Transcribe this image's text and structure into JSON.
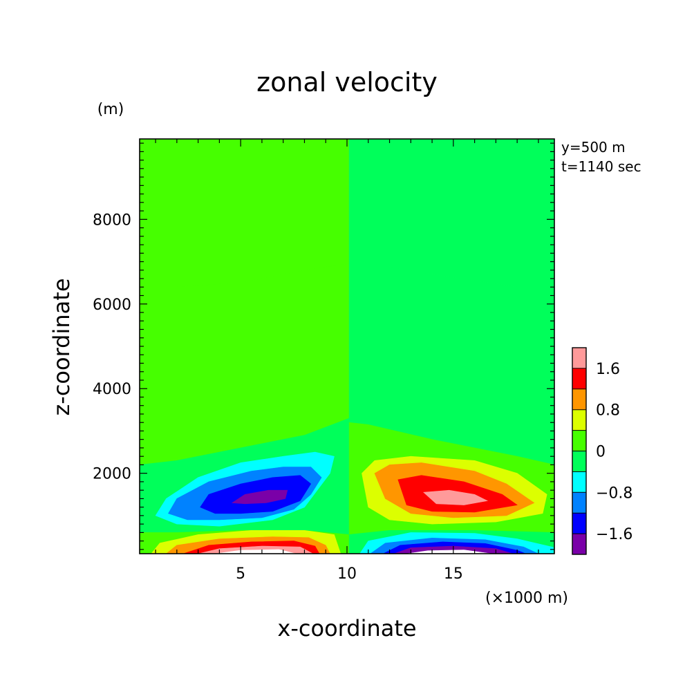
{
  "chart_data": {
    "type": "heatmap",
    "title": "zonal velocity",
    "xlabel": "x-coordinate",
    "ylabel": "z-coordinate",
    "x_unit": "(×1000 m)",
    "y_unit": "(m)",
    "annotations": [
      "y=500 m",
      "t=1140 sec"
    ],
    "xlim": [
      0.25,
      19.75
    ],
    "ylim": [
      100,
      9900
    ],
    "x_ticks": [
      5,
      10,
      15
    ],
    "y_ticks": [
      2000,
      4000,
      6000,
      8000
    ],
    "grid": false,
    "legend_placement": "right",
    "colorbar": {
      "levels": [
        {
          "min": -2.0,
          "max": -1.6,
          "color": "#7a00a8"
        },
        {
          "min": -1.6,
          "max": -1.2,
          "color": "#0000ff"
        },
        {
          "min": -1.2,
          "max": -0.8,
          "color": "#0082ff"
        },
        {
          "min": -0.8,
          "max": -0.4,
          "color": "#00ffff"
        },
        {
          "min": -0.4,
          "max": 0.0,
          "color": "#00ff5a"
        },
        {
          "min": 0.0,
          "max": 0.4,
          "color": "#46ff00"
        },
        {
          "min": 0.4,
          "max": 0.8,
          "color": "#dcff00"
        },
        {
          "min": 0.8,
          "max": 1.2,
          "color": "#ff9600"
        },
        {
          "min": 1.2,
          "max": 1.6,
          "color": "#ff0000"
        },
        {
          "min": 1.6,
          "max": 2.0,
          "color": "#ff9a9a"
        }
      ],
      "tick_labels": [
        {
          "value": -1.6,
          "label": "−1.6"
        },
        {
          "value": -0.8,
          "label": "−0.8"
        },
        {
          "value": 0,
          "label": "0"
        },
        {
          "value": 0.8,
          "label": "0.8"
        },
        {
          "value": 1.6,
          "label": "1.6"
        }
      ]
    },
    "contour_regions": [
      {
        "level": 0.0,
        "color": "#46ff00",
        "points": [
          [
            0.25,
            9900
          ],
          [
            10.1,
            9900
          ],
          [
            10.1,
            6950
          ],
          [
            8,
            6800
          ],
          [
            5,
            6500
          ],
          [
            2,
            6400
          ],
          [
            0.25,
            6400
          ]
        ]
      },
      {
        "level": -0.4,
        "color": "#00ff5a",
        "points": [
          [
            10.1,
            9900
          ],
          [
            19.75,
            9900
          ],
          [
            19.75,
            6400
          ],
          [
            18,
            6400
          ],
          [
            14,
            6700
          ],
          [
            10.1,
            7050
          ]
        ]
      },
      {
        "level": 0.0,
        "color": "#46ff00",
        "points": [
          [
            0.25,
            6400
          ],
          [
            2,
            6400
          ],
          [
            5,
            6500
          ],
          [
            8,
            6800
          ],
          [
            10.1,
            6950
          ],
          [
            10.1,
            3300
          ],
          [
            8,
            2900
          ],
          [
            5,
            2600
          ],
          [
            2,
            2300
          ],
          [
            0.25,
            2200
          ]
        ]
      },
      {
        "level": -0.4,
        "color": "#00ff5a",
        "points": [
          [
            10.1,
            6950
          ],
          [
            10.1,
            7050
          ],
          [
            14,
            6700
          ],
          [
            18,
            6400
          ],
          [
            19.75,
            6400
          ],
          [
            19.75,
            2200
          ],
          [
            18,
            2400
          ],
          [
            14,
            2800
          ],
          [
            11,
            3150
          ],
          [
            10.1,
            3200
          ]
        ]
      },
      {
        "level": -0.4,
        "color": "#00ff5a",
        "points": [
          [
            0.25,
            2200
          ],
          [
            2,
            2300
          ],
          [
            5,
            2600
          ],
          [
            8,
            2900
          ],
          [
            10.1,
            3300
          ],
          [
            10.1,
            550
          ],
          [
            8,
            650
          ],
          [
            5,
            650
          ],
          [
            2,
            600
          ],
          [
            0.25,
            600
          ]
        ]
      },
      {
        "level": 0.0,
        "color": "#46ff00",
        "points": [
          [
            10.1,
            3200
          ],
          [
            11,
            3150
          ],
          [
            14,
            2800
          ],
          [
            18,
            2400
          ],
          [
            19.75,
            2200
          ],
          [
            19.75,
            600
          ],
          [
            16,
            650
          ],
          [
            12,
            650
          ],
          [
            10.1,
            550
          ]
        ]
      },
      {
        "level": 0.0,
        "color": "#46ff00",
        "points": [
          [
            0.25,
            600
          ],
          [
            2,
            600
          ],
          [
            5,
            650
          ],
          [
            8,
            650
          ],
          [
            10.1,
            550
          ],
          [
            10.1,
            100
          ],
          [
            0.25,
            100
          ]
        ]
      },
      {
        "level": -0.4,
        "color": "#00ff5a",
        "points": [
          [
            10.1,
            550
          ],
          [
            12,
            650
          ],
          [
            16,
            650
          ],
          [
            19.75,
            600
          ],
          [
            19.75,
            100
          ],
          [
            10.1,
            100
          ]
        ]
      },
      {
        "level": -0.8,
        "color": "#00ffff",
        "points": [
          [
            1,
            1000
          ],
          [
            1.5,
            1400
          ],
          [
            3,
            1900
          ],
          [
            5,
            2250
          ],
          [
            7,
            2400
          ],
          [
            8.5,
            2500
          ],
          [
            9.4,
            2400
          ],
          [
            9.2,
            2000
          ],
          [
            8.6,
            1600
          ],
          [
            8,
            1200
          ],
          [
            6.5,
            900
          ],
          [
            4,
            750
          ],
          [
            2,
            800
          ]
        ]
      },
      {
        "level": -1.2,
        "color": "#0082ff",
        "points": [
          [
            1.6,
            1050
          ],
          [
            2,
            1400
          ],
          [
            3.5,
            1800
          ],
          [
            5.5,
            2050
          ],
          [
            7,
            2150
          ],
          [
            8.3,
            2150
          ],
          [
            8.8,
            1900
          ],
          [
            8.3,
            1500
          ],
          [
            7.5,
            1150
          ],
          [
            6,
            950
          ],
          [
            4,
            900
          ],
          [
            2.5,
            900
          ]
        ]
      },
      {
        "level": -1.6,
        "color": "#0000ff",
        "points": [
          [
            3.1,
            1200
          ],
          [
            3.5,
            1500
          ],
          [
            5,
            1750
          ],
          [
            6.5,
            1900
          ],
          [
            7.8,
            1950
          ],
          [
            8.3,
            1750
          ],
          [
            7.8,
            1350
          ],
          [
            6.5,
            1100
          ],
          [
            5,
            1050
          ],
          [
            3.8,
            1050
          ]
        ]
      },
      {
        "level": -2.0,
        "color": "#7a00a8",
        "points": [
          [
            4.6,
            1300
          ],
          [
            5.2,
            1500
          ],
          [
            6.3,
            1600
          ],
          [
            7.2,
            1600
          ],
          [
            7.1,
            1400
          ],
          [
            6.2,
            1300
          ],
          [
            5.2,
            1280
          ]
        ]
      },
      {
        "level": 0.4,
        "color": "#dcff00",
        "points": [
          [
            10.7,
            2000
          ],
          [
            11.3,
            2300
          ],
          [
            13,
            2400
          ],
          [
            16,
            2300
          ],
          [
            18,
            2000
          ],
          [
            19.4,
            1500
          ],
          [
            19.2,
            1050
          ],
          [
            17,
            850
          ],
          [
            14,
            800
          ],
          [
            12,
            900
          ],
          [
            11,
            1200
          ]
        ]
      },
      {
        "level": 0.8,
        "color": "#ff9600",
        "points": [
          [
            11.3,
            2000
          ],
          [
            12,
            2200
          ],
          [
            13.5,
            2250
          ],
          [
            16,
            2050
          ],
          [
            17.5,
            1750
          ],
          [
            18.8,
            1300
          ],
          [
            17.5,
            1000
          ],
          [
            15,
            950
          ],
          [
            13,
            1050
          ],
          [
            11.8,
            1400
          ]
        ]
      },
      {
        "level": 1.2,
        "color": "#ff0000",
        "points": [
          [
            12.4,
            1850
          ],
          [
            13.5,
            1950
          ],
          [
            15.5,
            1800
          ],
          [
            17.3,
            1500
          ],
          [
            18,
            1250
          ],
          [
            16,
            1080
          ],
          [
            14,
            1100
          ],
          [
            12.8,
            1250
          ]
        ]
      },
      {
        "level": 1.6,
        "color": "#ff9a9a",
        "points": [
          [
            13.6,
            1550
          ],
          [
            14.8,
            1600
          ],
          [
            16,
            1500
          ],
          [
            16.6,
            1350
          ],
          [
            15.5,
            1250
          ],
          [
            14.2,
            1280
          ]
        ]
      },
      {
        "level": 0.4,
        "color": "#dcff00",
        "points": [
          [
            0.8,
            100
          ],
          [
            1.2,
            350
          ],
          [
            3,
            550
          ],
          [
            5.5,
            650
          ],
          [
            8,
            650
          ],
          [
            9.4,
            550
          ],
          [
            9.7,
            100
          ]
        ]
      },
      {
        "level": 0.8,
        "color": "#ff9600",
        "points": [
          [
            1.5,
            100
          ],
          [
            2,
            300
          ],
          [
            4,
            450
          ],
          [
            6.5,
            500
          ],
          [
            8.2,
            480
          ],
          [
            9,
            300
          ],
          [
            9.2,
            100
          ]
        ]
      },
      {
        "level": 1.2,
        "color": "#ff0000",
        "points": [
          [
            2.3,
            100
          ],
          [
            3.5,
            300
          ],
          [
            5.5,
            380
          ],
          [
            7.5,
            400
          ],
          [
            8.5,
            280
          ],
          [
            8.7,
            100
          ]
        ]
      },
      {
        "level": 1.6,
        "color": "#ff9a9a",
        "points": [
          [
            3,
            100
          ],
          [
            4,
            220
          ],
          [
            6,
            280
          ],
          [
            7.8,
            260
          ],
          [
            8.4,
            100
          ]
        ]
      },
      {
        "level": 2.0,
        "color": "#ffffff",
        "points": [
          [
            3.8,
            100
          ],
          [
            5,
            180
          ],
          [
            6.8,
            200
          ],
          [
            7.6,
            100
          ]
        ]
      },
      {
        "level": -0.8,
        "color": "#00ffff",
        "points": [
          [
            10.6,
            100
          ],
          [
            11,
            400
          ],
          [
            13,
            600
          ],
          [
            16,
            580
          ],
          [
            18,
            450
          ],
          [
            19.7,
            250
          ],
          [
            19.7,
            100
          ]
        ]
      },
      {
        "level": -1.2,
        "color": "#0082ff",
        "points": [
          [
            11.1,
            100
          ],
          [
            11.8,
            350
          ],
          [
            14,
            470
          ],
          [
            16.5,
            430
          ],
          [
            18.3,
            260
          ],
          [
            19,
            100
          ]
        ]
      },
      {
        "level": -1.6,
        "color": "#0000ff",
        "points": [
          [
            11.7,
            100
          ],
          [
            12.5,
            300
          ],
          [
            14.5,
            380
          ],
          [
            16.5,
            340
          ],
          [
            18,
            180
          ],
          [
            18.4,
            100
          ]
        ]
      },
      {
        "level": -2.0,
        "color": "#7a00a8",
        "points": [
          [
            12.2,
            100
          ],
          [
            13,
            240
          ],
          [
            15,
            280
          ],
          [
            17,
            220
          ],
          [
            17.8,
            100
          ]
        ]
      },
      {
        "level": -2.4,
        "color": "#ffffff",
        "points": [
          [
            12.8,
            100
          ],
          [
            13.8,
            170
          ],
          [
            15.5,
            190
          ],
          [
            16.8,
            100
          ]
        ]
      }
    ]
  }
}
